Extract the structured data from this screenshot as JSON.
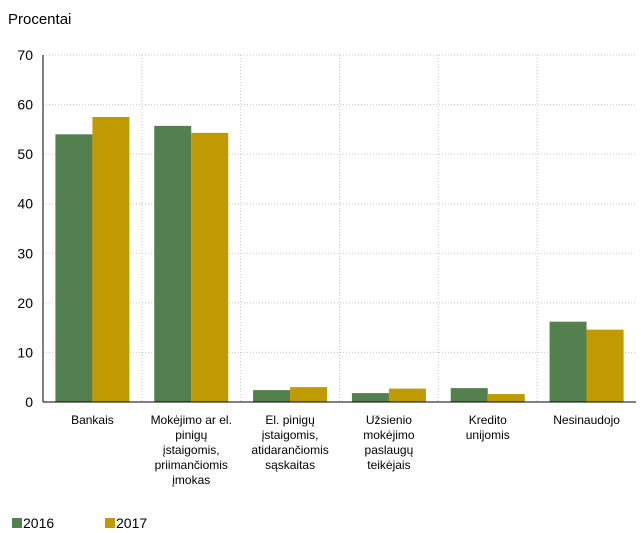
{
  "chart_data": {
    "type": "bar",
    "title": "",
    "ylabel": "Procentai",
    "xlabel": "",
    "ylim": [
      0,
      70
    ],
    "yticks": [
      "0",
      "10",
      "20",
      "30",
      "40",
      "50",
      "60",
      "70"
    ],
    "grid": true,
    "legend_position": "bottom-left",
    "categories": [
      "Bankais",
      "Mokėjimo ar el. pinigų įstaigomis, priimančiomis įmokas",
      "El. pinigų įstaigomis, atidarančiomis sąskaitas",
      "Užsienio mokėjimo paslaugų teikėjais",
      "Kredito unijomis",
      "Nesinaudojo"
    ],
    "category_lines": [
      [
        "Bankais"
      ],
      [
        "Mokėjimo ar el.",
        "pinigų",
        "įstaigomis,",
        "priimančiomis",
        "įmokas"
      ],
      [
        "El. pinigų",
        "įstaigomis,",
        "atidarančiomis",
        "sąskaitas"
      ],
      [
        "Užsienio",
        "mokėjimo",
        "paslaugų",
        "teikėjais"
      ],
      [
        "Kredito",
        "unijomis"
      ],
      [
        "Nesinaudojo"
      ]
    ],
    "series": [
      {
        "name": "2016",
        "color": "#548050",
        "values": [
          54,
          55.7,
          2.4,
          1.8,
          2.8,
          16.2
        ]
      },
      {
        "name": "2017",
        "color": "#bf9a00",
        "values": [
          57.5,
          54.3,
          3.0,
          2.7,
          1.6,
          14.6
        ]
      }
    ]
  }
}
